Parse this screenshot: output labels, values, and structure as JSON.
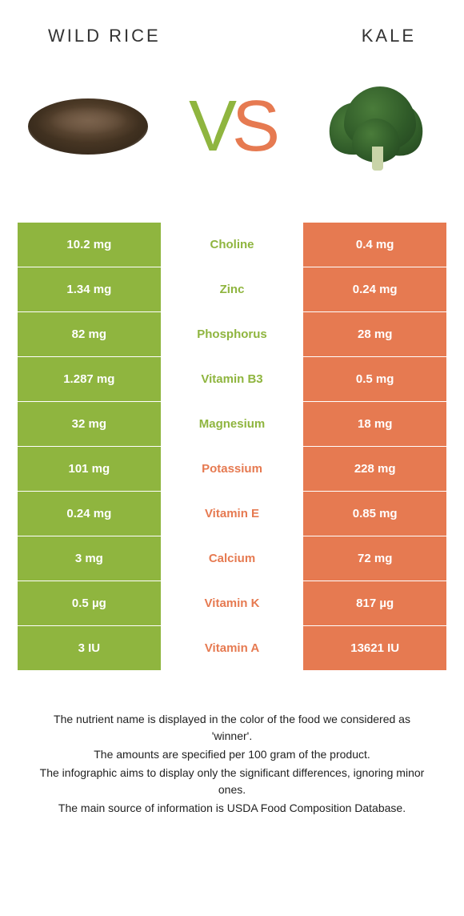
{
  "colors": {
    "left": "#8fb53f",
    "right": "#e67a51",
    "left_text": "#8fb53f",
    "right_text": "#e67a51"
  },
  "foods": {
    "left": "Wild Rice",
    "right": "Kale"
  },
  "vs": {
    "v": "V",
    "s": "S"
  },
  "rows": [
    {
      "nutrient": "Choline",
      "left": "10.2 mg",
      "right": "0.4 mg",
      "winner": "left"
    },
    {
      "nutrient": "Zinc",
      "left": "1.34 mg",
      "right": "0.24 mg",
      "winner": "left"
    },
    {
      "nutrient": "Phosphorus",
      "left": "82 mg",
      "right": "28 mg",
      "winner": "left"
    },
    {
      "nutrient": "Vitamin B3",
      "left": "1.287 mg",
      "right": "0.5 mg",
      "winner": "left"
    },
    {
      "nutrient": "Magnesium",
      "left": "32 mg",
      "right": "18 mg",
      "winner": "left"
    },
    {
      "nutrient": "Potassium",
      "left": "101 mg",
      "right": "228 mg",
      "winner": "right"
    },
    {
      "nutrient": "Vitamin E",
      "left": "0.24 mg",
      "right": "0.85 mg",
      "winner": "right"
    },
    {
      "nutrient": "Calcium",
      "left": "3 mg",
      "right": "72 mg",
      "winner": "right"
    },
    {
      "nutrient": "Vitamin K",
      "left": "0.5 µg",
      "right": "817 µg",
      "winner": "right"
    },
    {
      "nutrient": "Vitamin A",
      "left": "3 IU",
      "right": "13621 IU",
      "winner": "right"
    }
  ],
  "footer": {
    "line1": "The nutrient name is displayed in the color of the food we considered as 'winner'.",
    "line2": "The amounts are specified per 100 gram of the product.",
    "line3": "The infographic aims to display only the significant differences, ignoring minor ones.",
    "line4": "The main source of information is USDA Food Composition Database."
  }
}
